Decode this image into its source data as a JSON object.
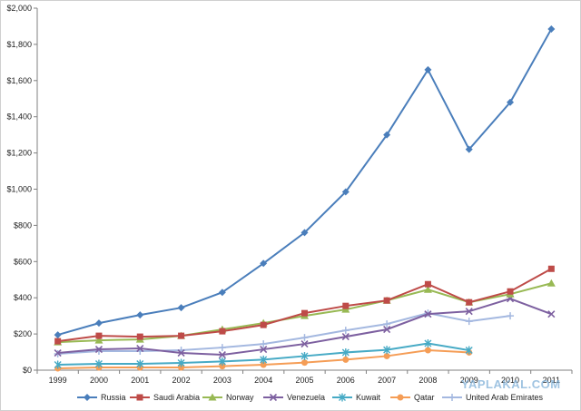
{
  "watermark": "YAPLAKAL.COM",
  "chart_data": {
    "type": "line",
    "title": "",
    "xlabel": "",
    "ylabel": "",
    "categories": [
      "1999",
      "2000",
      "2001",
      "2002",
      "2003",
      "2004",
      "2005",
      "2006",
      "2007",
      "2008",
      "2009",
      "2010",
      "2011"
    ],
    "y_ticks": [
      "$0",
      "$200",
      "$400",
      "$600",
      "$800",
      "$1,000",
      "$1,200",
      "$1,400",
      "$1,600",
      "$1,800",
      "$2,000"
    ],
    "ylim": [
      0,
      2000
    ],
    "grid": false,
    "legend_position": "bottom",
    "series": [
      {
        "name": "Russia",
        "color": "#4a7ebb",
        "marker": "diamond",
        "values": [
          195,
          260,
          305,
          345,
          430,
          590,
          760,
          985,
          1300,
          1660,
          1220,
          1480,
          1885
        ]
      },
      {
        "name": "Saudi Arabia",
        "color": "#be4b48",
        "marker": "square",
        "values": [
          160,
          190,
          185,
          190,
          215,
          250,
          315,
          355,
          385,
          475,
          375,
          435,
          560
        ]
      },
      {
        "name": "Norway",
        "color": "#98b954",
        "marker": "triangle",
        "values": [
          155,
          165,
          170,
          190,
          225,
          260,
          300,
          335,
          385,
          445,
          375,
          420,
          480
        ]
      },
      {
        "name": "Venezuela",
        "color": "#7d60a0",
        "marker": "x",
        "values": [
          95,
          115,
          120,
          95,
          85,
          115,
          145,
          185,
          225,
          310,
          325,
          395,
          310
        ]
      },
      {
        "name": "Kuwait",
        "color": "#46aac5",
        "marker": "star",
        "values": [
          30,
          35,
          35,
          40,
          48,
          58,
          78,
          98,
          112,
          148,
          110,
          null,
          null
        ]
      },
      {
        "name": "Qatar",
        "color": "#f59d56",
        "marker": "circle",
        "values": [
          10,
          15,
          15,
          15,
          22,
          30,
          42,
          58,
          78,
          110,
          98,
          null,
          null
        ]
      },
      {
        "name": "United Arab Emirates",
        "color": "#a4b8e0",
        "marker": "plus",
        "values": [
          90,
          105,
          105,
          110,
          125,
          145,
          180,
          220,
          255,
          315,
          270,
          300,
          null
        ]
      }
    ]
  }
}
